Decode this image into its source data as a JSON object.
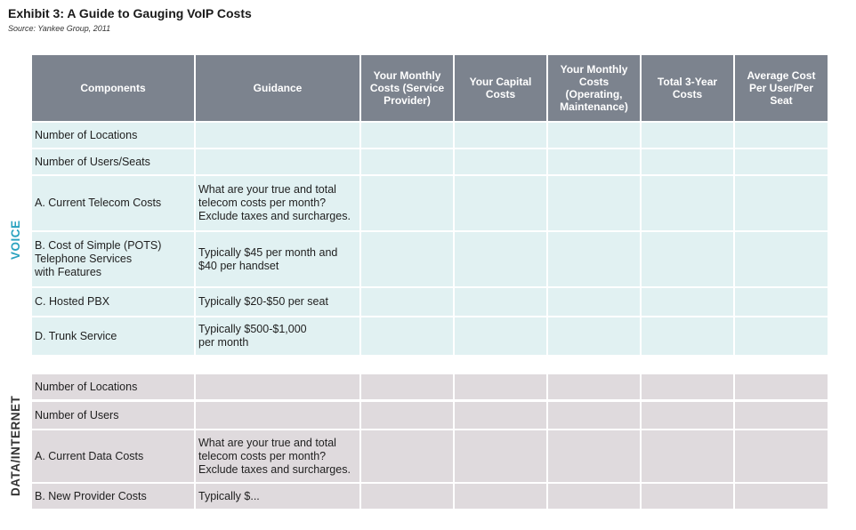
{
  "title": "Exhibit 3: A Guide to Gauging VoIP Costs",
  "source": "Source: Yankee Group, 2011",
  "columns": [
    "Components",
    "Guidance",
    "Your Monthly Costs (Service Provider)",
    "Your Capital Costs",
    "Your Monthly Costs (Operating, Maintenance)",
    "Total 3-Year Costs",
    "Average Cost Per User/Per Seat"
  ],
  "sections": [
    {
      "label": "VOICE",
      "rows": [
        {
          "component": "Number of Locations",
          "guidance": ""
        },
        {
          "component": "Number of Users/Seats",
          "guidance": ""
        },
        {
          "component": "A.  Current Telecom Costs",
          "guidance": "What are your true and total\ntelecom costs per month?\nExclude taxes and surcharges."
        },
        {
          "component": "B.  Cost of Simple (POTS)\n      Telephone Services\n      with Features",
          "guidance": "Typically $45 per month and\n$40 per handset"
        },
        {
          "component": "C.  Hosted PBX",
          "guidance": "Typically $20-$50 per seat"
        },
        {
          "component": "D.  Trunk Service",
          "guidance": "Typically $500-$1,000\nper month"
        }
      ]
    },
    {
      "label": "DATA/INTERNET",
      "rows": [
        {
          "component": "Number of Locations",
          "guidance": ""
        },
        {
          "component": "Number of Users",
          "guidance": ""
        },
        {
          "component": "A.  Current Data Costs",
          "guidance": "What are your true and total\ntelecom costs per month?\nExclude taxes and surcharges."
        },
        {
          "component": "B.  New Provider Costs",
          "guidance": "Typically $..."
        }
      ]
    }
  ]
}
